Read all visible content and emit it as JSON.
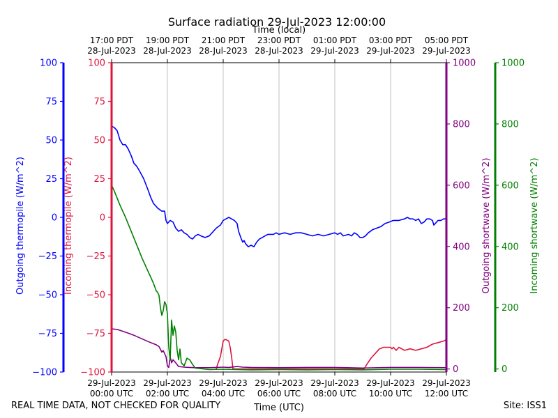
{
  "chart_data": {
    "type": "line",
    "title": "Surface radiation 29-Jul-2023 12:00:00",
    "top_axis_label": "Time (local)",
    "bottom_axis_label": "Time (UTC)",
    "x_range_utc_hours": [
      0,
      12
    ],
    "bottom_ticks": [
      {
        "h": 0,
        "line1": "29-Jul-2023",
        "line2": "00:00 UTC"
      },
      {
        "h": 2,
        "line1": "29-Jul-2023",
        "line2": "02:00 UTC"
      },
      {
        "h": 4,
        "line1": "29-Jul-2023",
        "line2": "04:00 UTC"
      },
      {
        "h": 6,
        "line1": "29-Jul-2023",
        "line2": "06:00 UTC"
      },
      {
        "h": 8,
        "line1": "29-Jul-2023",
        "line2": "08:00 UTC"
      },
      {
        "h": 10,
        "line1": "29-Jul-2023",
        "line2": "10:00 UTC"
      },
      {
        "h": 12,
        "line1": "29-Jul-2023",
        "line2": "12:00 UTC"
      }
    ],
    "top_ticks": [
      {
        "h": 0,
        "line1": "17:00 PDT",
        "line2": "28-Jul-2023"
      },
      {
        "h": 2,
        "line1": "19:00 PDT",
        "line2": "28-Jul-2023"
      },
      {
        "h": 4,
        "line1": "21:00 PDT",
        "line2": "28-Jul-2023"
      },
      {
        "h": 6,
        "line1": "23:00 PDT",
        "line2": "28-Jul-2023"
      },
      {
        "h": 8,
        "line1": "01:00 PDT",
        "line2": "29-Jul-2023"
      },
      {
        "h": 10,
        "line1": "03:00 PDT",
        "line2": "29-Jul-2023"
      },
      {
        "h": 12,
        "line1": "05:00 PDT",
        "line2": "29-Jul-2023"
      }
    ],
    "grid": "vertical",
    "axes": {
      "outgoing_thermopile": {
        "label": "Outgoing thermopile (W/m^2)",
        "color": "#0000ff",
        "ylim": [
          -100,
          100
        ],
        "ticks": [
          -100,
          -75,
          -50,
          -25,
          0,
          25,
          50,
          75,
          100
        ]
      },
      "incoming_thermopile": {
        "label": "Incoming thermopile (W/m^2)",
        "color": "#dc143c",
        "ylim": [
          -100,
          100
        ],
        "ticks": [
          -100,
          -75,
          -50,
          -25,
          0,
          25,
          50,
          75,
          100
        ]
      },
      "outgoing_shortwave": {
        "label": "Outgoing shortwave (W/m^2)",
        "color": "#800080",
        "ylim": [
          -10,
          1000
        ],
        "ticks": [
          0,
          200,
          400,
          600,
          800,
          1000
        ]
      },
      "incoming_shortwave": {
        "label": "Incoming shortwave (W/m^2)",
        "color": "#008000",
        "ylim": [
          -10,
          1000
        ],
        "ticks": [
          0,
          200,
          400,
          600,
          800,
          1000
        ]
      }
    },
    "series": [
      {
        "name": "Outgoing thermopile",
        "axis": "outgoing_thermopile",
        "color": "#0000ff",
        "points": [
          [
            0,
            59
          ],
          [
            0.1,
            58
          ],
          [
            0.2,
            56
          ],
          [
            0.3,
            50
          ],
          [
            0.4,
            47
          ],
          [
            0.5,
            47
          ],
          [
            0.6,
            44
          ],
          [
            0.7,
            40
          ],
          [
            0.8,
            35
          ],
          [
            0.9,
            33
          ],
          [
            1.0,
            30
          ],
          [
            1.15,
            25
          ],
          [
            1.3,
            18
          ],
          [
            1.4,
            13
          ],
          [
            1.5,
            9
          ],
          [
            1.65,
            6
          ],
          [
            1.8,
            4
          ],
          [
            1.9,
            4
          ],
          [
            1.95,
            -2
          ],
          [
            2.0,
            -4
          ],
          [
            2.1,
            -2
          ],
          [
            2.2,
            -3
          ],
          [
            2.3,
            -7
          ],
          [
            2.4,
            -9
          ],
          [
            2.5,
            -8
          ],
          [
            2.6,
            -10
          ],
          [
            2.7,
            -11
          ],
          [
            2.8,
            -13
          ],
          [
            2.9,
            -14
          ],
          [
            3.0,
            -12
          ],
          [
            3.1,
            -11
          ],
          [
            3.2,
            -12
          ],
          [
            3.35,
            -13
          ],
          [
            3.5,
            -12
          ],
          [
            3.6,
            -10
          ],
          [
            3.75,
            -7
          ],
          [
            3.9,
            -5
          ],
          [
            4.0,
            -2
          ],
          [
            4.1,
            -1
          ],
          [
            4.2,
            0
          ],
          [
            4.3,
            -1
          ],
          [
            4.4,
            -2
          ],
          [
            4.5,
            -4
          ],
          [
            4.55,
            -9
          ],
          [
            4.65,
            -14
          ],
          [
            4.7,
            -16
          ],
          [
            4.75,
            -15
          ],
          [
            4.8,
            -17
          ],
          [
            4.9,
            -19
          ],
          [
            5.0,
            -18
          ],
          [
            5.1,
            -19
          ],
          [
            5.2,
            -16
          ],
          [
            5.3,
            -14
          ],
          [
            5.4,
            -13
          ],
          [
            5.5,
            -12
          ],
          [
            5.6,
            -11
          ],
          [
            5.7,
            -11
          ],
          [
            5.8,
            -11
          ],
          [
            5.9,
            -10
          ],
          [
            6.0,
            -11
          ],
          [
            6.2,
            -10
          ],
          [
            6.4,
            -11
          ],
          [
            6.6,
            -10
          ],
          [
            6.8,
            -10
          ],
          [
            7.0,
            -11
          ],
          [
            7.2,
            -12
          ],
          [
            7.4,
            -11
          ],
          [
            7.6,
            -12
          ],
          [
            7.8,
            -11
          ],
          [
            8.0,
            -10
          ],
          [
            8.1,
            -11
          ],
          [
            8.2,
            -10
          ],
          [
            8.3,
            -12
          ],
          [
            8.5,
            -11
          ],
          [
            8.6,
            -12
          ],
          [
            8.7,
            -10
          ],
          [
            8.8,
            -11
          ],
          [
            8.9,
            -13
          ],
          [
            9.0,
            -13
          ],
          [
            9.1,
            -12
          ],
          [
            9.2,
            -10
          ],
          [
            9.35,
            -8
          ],
          [
            9.5,
            -7
          ],
          [
            9.65,
            -6
          ],
          [
            9.8,
            -4
          ],
          [
            9.95,
            -3
          ],
          [
            10.1,
            -2
          ],
          [
            10.3,
            -2
          ],
          [
            10.5,
            -1
          ],
          [
            10.6,
            0
          ],
          [
            10.7,
            -1
          ],
          [
            10.8,
            -1
          ],
          [
            10.9,
            -2
          ],
          [
            11.0,
            -1
          ],
          [
            11.1,
            -4
          ],
          [
            11.2,
            -3
          ],
          [
            11.3,
            -1
          ],
          [
            11.4,
            -1
          ],
          [
            11.5,
            -2
          ],
          [
            11.55,
            -5
          ],
          [
            11.65,
            -3
          ],
          [
            11.7,
            -2
          ],
          [
            11.8,
            -2
          ],
          [
            11.9,
            -1
          ],
          [
            12.0,
            -1
          ]
        ]
      },
      {
        "name": "Incoming thermopile",
        "axis": "incoming_thermopile",
        "color": "#dc143c",
        "points": [
          [
            3.75,
            -98
          ],
          [
            3.8,
            -95
          ],
          [
            3.9,
            -90
          ],
          [
            3.95,
            -85
          ],
          [
            4.0,
            -80
          ],
          [
            4.05,
            -79
          ],
          [
            4.1,
            -79
          ],
          [
            4.2,
            -80
          ],
          [
            4.25,
            -84
          ],
          [
            4.3,
            -90
          ],
          [
            4.35,
            -98
          ],
          [
            9.05,
            -98
          ],
          [
            9.15,
            -95
          ],
          [
            9.3,
            -91
          ],
          [
            9.45,
            -88
          ],
          [
            9.6,
            -85
          ],
          [
            9.75,
            -84
          ],
          [
            9.9,
            -84
          ],
          [
            10.0,
            -84
          ],
          [
            10.05,
            -85
          ],
          [
            10.1,
            -84
          ],
          [
            10.2,
            -86
          ],
          [
            10.3,
            -84
          ],
          [
            10.5,
            -86
          ],
          [
            10.7,
            -85
          ],
          [
            10.9,
            -86
          ],
          [
            11.1,
            -85
          ],
          [
            11.3,
            -84
          ],
          [
            11.5,
            -82
          ],
          [
            11.7,
            -81
          ],
          [
            11.9,
            -80
          ],
          [
            12.0,
            -79
          ]
        ]
      },
      {
        "name": "Outgoing shortwave",
        "axis": "outgoing_shortwave",
        "color": "#800080",
        "points": [
          [
            0,
            131
          ],
          [
            0.2,
            129
          ],
          [
            0.4,
            123
          ],
          [
            0.6,
            117
          ],
          [
            0.8,
            110
          ],
          [
            1.0,
            102
          ],
          [
            1.2,
            94
          ],
          [
            1.4,
            86
          ],
          [
            1.6,
            79
          ],
          [
            1.7,
            73
          ],
          [
            1.8,
            55
          ],
          [
            1.85,
            60
          ],
          [
            1.9,
            50
          ],
          [
            1.95,
            40
          ],
          [
            2.0,
            10
          ],
          [
            2.05,
            5
          ],
          [
            2.1,
            40
          ],
          [
            2.15,
            20
          ],
          [
            2.2,
            30
          ],
          [
            2.3,
            20
          ],
          [
            2.4,
            8
          ],
          [
            2.6,
            6
          ],
          [
            2.8,
            5
          ],
          [
            3.0,
            4
          ],
          [
            3.5,
            4
          ],
          [
            4.0,
            6
          ],
          [
            4.2,
            5
          ],
          [
            4.5,
            8
          ],
          [
            4.7,
            6
          ],
          [
            5.0,
            5
          ],
          [
            6.0,
            4
          ],
          [
            7.0,
            5
          ],
          [
            8.0,
            5
          ],
          [
            9.0,
            3
          ],
          [
            10.0,
            5
          ],
          [
            11.0,
            5
          ],
          [
            12.0,
            4
          ]
        ]
      },
      {
        "name": "Incoming shortwave",
        "axis": "incoming_shortwave",
        "color": "#008000",
        "points": [
          [
            0,
            600
          ],
          [
            0.1,
            580
          ],
          [
            0.3,
            535
          ],
          [
            0.5,
            495
          ],
          [
            0.7,
            450
          ],
          [
            0.9,
            405
          ],
          [
            1.1,
            360
          ],
          [
            1.3,
            320
          ],
          [
            1.5,
            280
          ],
          [
            1.6,
            255
          ],
          [
            1.65,
            250
          ],
          [
            1.7,
            240
          ],
          [
            1.75,
            200
          ],
          [
            1.8,
            175
          ],
          [
            1.85,
            190
          ],
          [
            1.9,
            220
          ],
          [
            1.95,
            210
          ],
          [
            2.0,
            180
          ],
          [
            2.05,
            70
          ],
          [
            2.1,
            30
          ],
          [
            2.15,
            160
          ],
          [
            2.2,
            110
          ],
          [
            2.25,
            140
          ],
          [
            2.3,
            120
          ],
          [
            2.35,
            60
          ],
          [
            2.4,
            30
          ],
          [
            2.45,
            65
          ],
          [
            2.5,
            20
          ],
          [
            2.6,
            10
          ],
          [
            2.7,
            35
          ],
          [
            2.8,
            30
          ],
          [
            2.9,
            15
          ],
          [
            3.0,
            3
          ],
          [
            3.5,
            -2
          ],
          [
            4.0,
            -1
          ],
          [
            5.0,
            -3
          ],
          [
            6.0,
            -2
          ],
          [
            7.0,
            -3
          ],
          [
            8.0,
            -2
          ],
          [
            9.0,
            -3
          ],
          [
            10.0,
            -1
          ],
          [
            11.0,
            -1
          ],
          [
            12.0,
            -2
          ]
        ]
      }
    ]
  },
  "footer": {
    "quality_note": "REAL TIME DATA, NOT CHECKED FOR QUALITY",
    "site": "Site: ISS1"
  }
}
